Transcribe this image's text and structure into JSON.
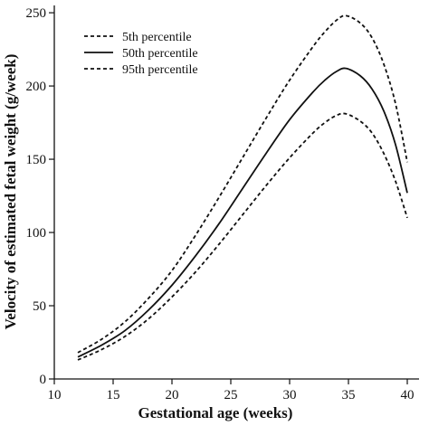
{
  "chart_data": {
    "type": "line",
    "xlabel": "Gestational age (weeks)",
    "ylabel": "Velocity of estimated fetal weight (g/week)",
    "xlim": [
      10,
      41
    ],
    "ylim": [
      0,
      255
    ],
    "xticks": [
      10,
      15,
      20,
      25,
      30,
      35,
      40
    ],
    "yticks": [
      0,
      50,
      100,
      150,
      200,
      250
    ],
    "grid": false,
    "legend_position": "top-left",
    "series": [
      {
        "name": "5th percentile",
        "style": "dashed",
        "x": [
          12,
          14,
          16,
          18,
          20,
          22,
          24,
          26,
          28,
          30,
          32,
          33,
          34,
          34.8,
          36,
          37,
          38,
          39,
          40
        ],
        "y": [
          13,
          20,
          29,
          41,
          56,
          73,
          92,
          112,
          132,
          151,
          168,
          175,
          180,
          181,
          176,
          168,
          154,
          135,
          110
        ]
      },
      {
        "name": "50th percentile",
        "style": "solid",
        "x": [
          12,
          14,
          16,
          18,
          20,
          22,
          24,
          26,
          28,
          30,
          32,
          33,
          34,
          34.8,
          36,
          37,
          38,
          39,
          40
        ],
        "y": [
          15,
          23,
          33,
          47,
          64,
          84,
          106,
          130,
          154,
          177,
          196,
          204,
          210,
          212,
          207,
          198,
          183,
          160,
          127
        ]
      },
      {
        "name": "95th percentile",
        "style": "dashed",
        "x": [
          12,
          14,
          16,
          18,
          20,
          22,
          24,
          26,
          28,
          30,
          32,
          33,
          34,
          34.8,
          36,
          37,
          38,
          39,
          40
        ],
        "y": [
          18,
          27,
          39,
          55,
          74,
          98,
          124,
          151,
          178,
          204,
          227,
          237,
          245,
          248,
          243,
          233,
          215,
          188,
          148
        ]
      }
    ]
  }
}
